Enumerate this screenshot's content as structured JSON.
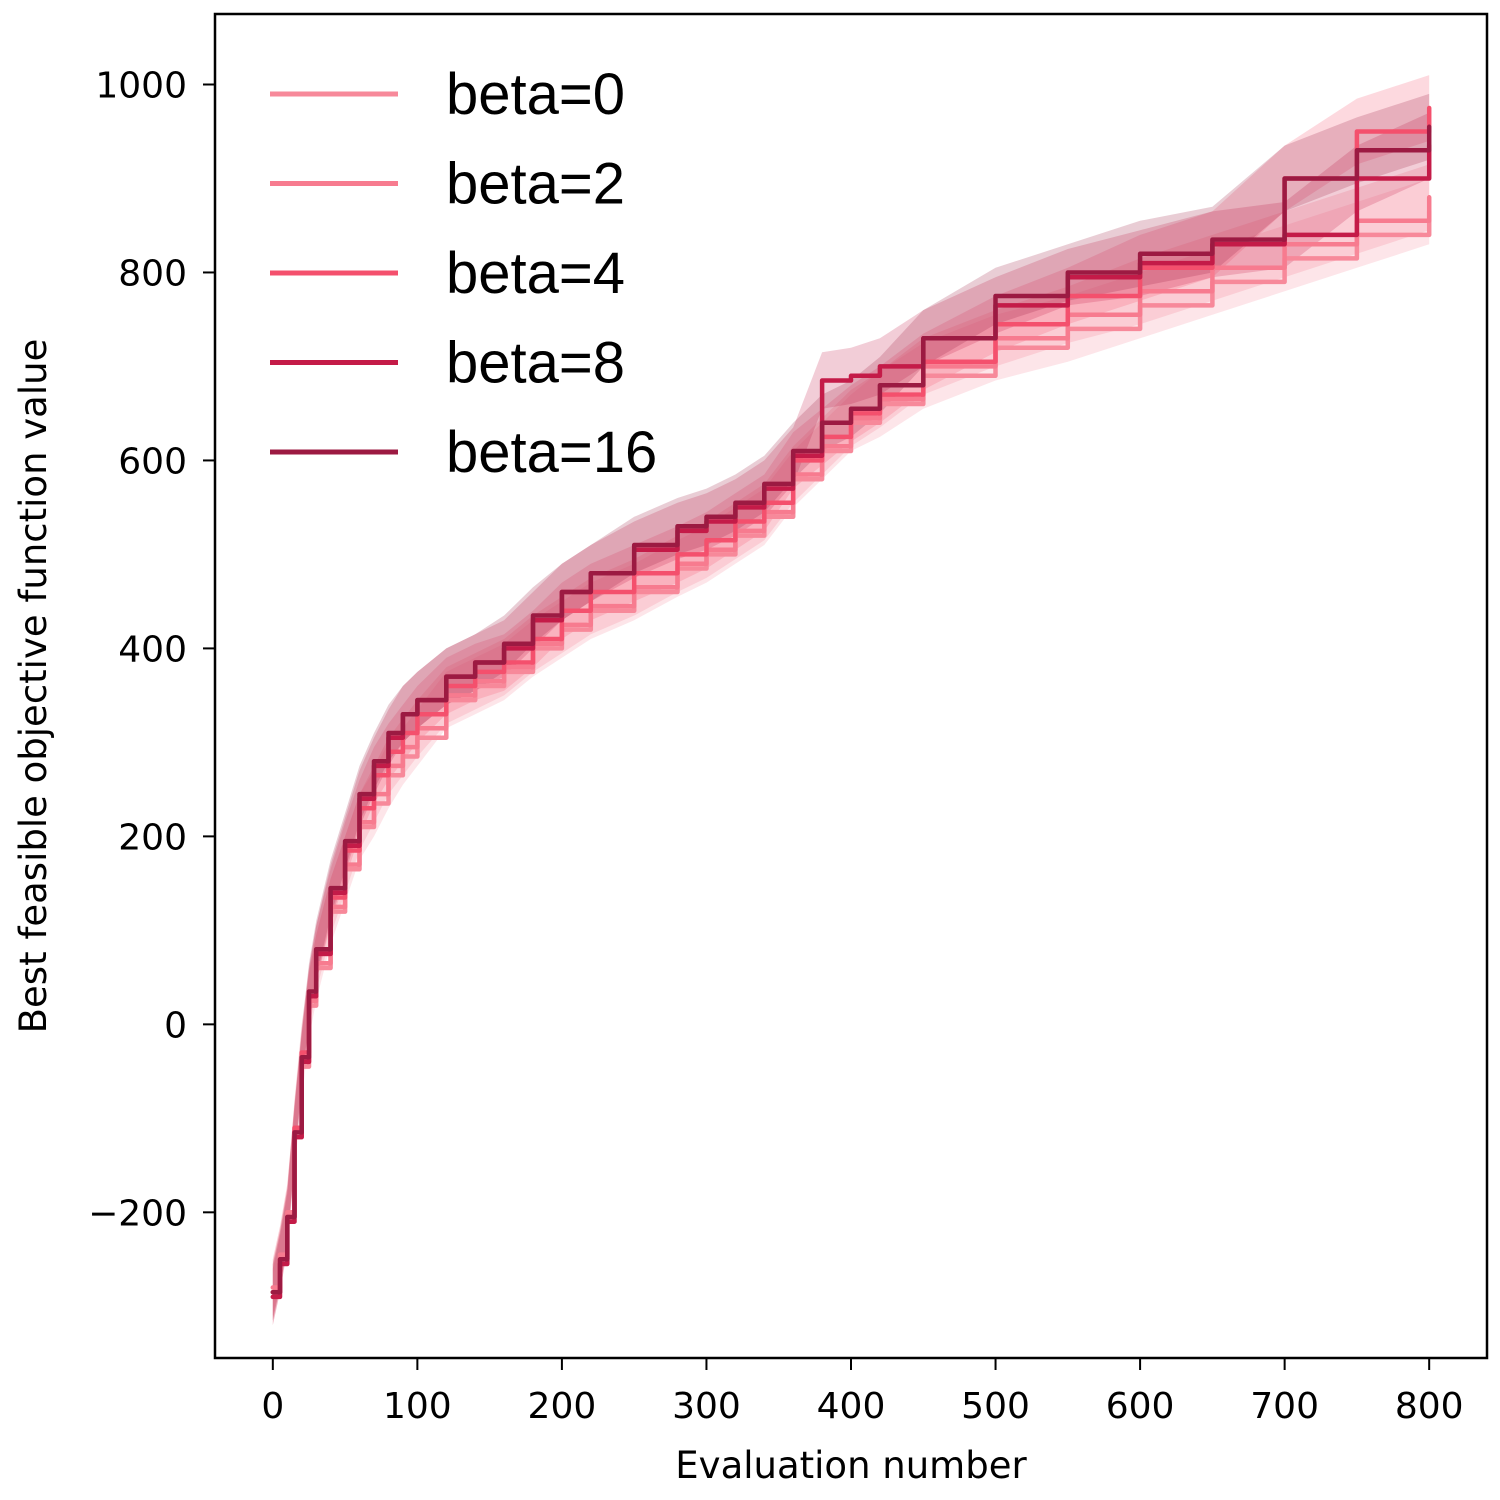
{
  "chart_data": {
    "type": "line",
    "title": "",
    "xlabel": "Evaluation number",
    "ylabel": "Best feasible objective function value",
    "xlim": [
      -40,
      840
    ],
    "ylim": [
      -355,
      1075
    ],
    "xticks": [
      0,
      100,
      200,
      300,
      400,
      500,
      600,
      700,
      800
    ],
    "yticks": [
      -200,
      0,
      200,
      400,
      600,
      800,
      1000
    ],
    "xtick_labels": [
      "0",
      "100",
      "200",
      "300",
      "400",
      "500",
      "600",
      "700",
      "800"
    ],
    "ytick_labels": [
      "−200",
      "0",
      "200",
      "400",
      "600",
      "800",
      "1000"
    ],
    "grid": false,
    "legend_position": "top-left",
    "shaded_bands": true,
    "series": [
      {
        "name": "beta=0",
        "color": "#f7899a",
        "x": [
          0,
          5,
          10,
          15,
          20,
          25,
          30,
          40,
          50,
          60,
          70,
          80,
          90,
          100,
          120,
          140,
          160,
          180,
          200,
          220,
          250,
          280,
          300,
          320,
          340,
          360,
          380,
          400,
          420,
          450,
          500,
          550,
          600,
          650,
          700,
          750,
          800
        ],
        "y": [
          -285,
          -250,
          -205,
          -120,
          -45,
          20,
          60,
          120,
          165,
          210,
          235,
          265,
          285,
          305,
          345,
          360,
          375,
          400,
          420,
          440,
          460,
          485,
          500,
          520,
          540,
          580,
          610,
          640,
          660,
          690,
          720,
          740,
          765,
          790,
          815,
          840,
          865
        ],
        "band": [
          35,
          35,
          35,
          35,
          35,
          35,
          35,
          35,
          35,
          35,
          35,
          35,
          30,
          30,
          30,
          30,
          30,
          30,
          30,
          30,
          30,
          30,
          30,
          30,
          30,
          30,
          30,
          30,
          35,
          35,
          35,
          35,
          35,
          35,
          35,
          35,
          35
        ]
      },
      {
        "name": "beta=2",
        "color": "#f77b8f",
        "x": [
          0,
          5,
          10,
          15,
          20,
          25,
          30,
          40,
          50,
          60,
          70,
          80,
          90,
          100,
          120,
          140,
          160,
          180,
          200,
          220,
          250,
          280,
          300,
          320,
          340,
          360,
          380,
          400,
          420,
          450,
          500,
          550,
          600,
          650,
          700,
          750,
          800
        ],
        "y": [
          -280,
          -245,
          -200,
          -115,
          -40,
          25,
          65,
          125,
          170,
          215,
          245,
          275,
          295,
          315,
          350,
          365,
          380,
          405,
          425,
          445,
          465,
          490,
          505,
          525,
          545,
          585,
          615,
          645,
          665,
          700,
          730,
          755,
          780,
          805,
          830,
          855,
          880
        ],
        "band": [
          30,
          30,
          30,
          30,
          30,
          30,
          30,
          30,
          30,
          30,
          30,
          30,
          30,
          30,
          30,
          30,
          30,
          30,
          30,
          30,
          30,
          30,
          30,
          30,
          30,
          30,
          30,
          30,
          30,
          30,
          30,
          30,
          35,
          35,
          35,
          35,
          35
        ]
      },
      {
        "name": "beta=4",
        "color": "#f4506d",
        "x": [
          0,
          5,
          10,
          15,
          20,
          25,
          30,
          40,
          50,
          60,
          70,
          80,
          90,
          100,
          120,
          140,
          160,
          180,
          200,
          220,
          250,
          280,
          300,
          320,
          340,
          360,
          380,
          400,
          420,
          450,
          500,
          550,
          600,
          650,
          700,
          750,
          800
        ],
        "y": [
          -285,
          -250,
          -205,
          -110,
          -30,
          30,
          75,
          135,
          185,
          230,
          265,
          290,
          310,
          330,
          360,
          375,
          385,
          410,
          440,
          460,
          480,
          500,
          515,
          535,
          555,
          600,
          625,
          650,
          670,
          705,
          745,
          775,
          805,
          830,
          900,
          950,
          975
        ],
        "band": [
          30,
          30,
          30,
          30,
          30,
          30,
          30,
          30,
          30,
          30,
          30,
          30,
          30,
          30,
          30,
          30,
          30,
          30,
          30,
          30,
          30,
          30,
          30,
          30,
          30,
          30,
          30,
          30,
          30,
          30,
          30,
          30,
          35,
          35,
          35,
          35,
          35
        ]
      },
      {
        "name": "beta=8",
        "color": "#c41b48",
        "x": [
          0,
          5,
          10,
          15,
          20,
          25,
          30,
          40,
          50,
          60,
          70,
          80,
          90,
          100,
          120,
          140,
          160,
          180,
          200,
          220,
          250,
          280,
          300,
          320,
          340,
          360,
          380,
          400,
          420,
          450,
          500,
          550,
          600,
          650,
          700,
          750,
          800
        ],
        "y": [
          -290,
          -255,
          -210,
          -120,
          -40,
          30,
          75,
          140,
          190,
          240,
          275,
          305,
          330,
          345,
          370,
          385,
          400,
          430,
          460,
          480,
          505,
          525,
          535,
          550,
          570,
          605,
          685,
          690,
          700,
          730,
          765,
          795,
          810,
          830,
          840,
          900,
          935
        ],
        "band": [
          30,
          30,
          30,
          30,
          30,
          30,
          30,
          30,
          30,
          30,
          30,
          30,
          30,
          30,
          30,
          30,
          30,
          30,
          30,
          30,
          30,
          30,
          30,
          30,
          30,
          30,
          30,
          30,
          30,
          30,
          30,
          30,
          35,
          35,
          35,
          35,
          35
        ]
      },
      {
        "name": "beta=16",
        "color": "#9c1a42",
        "x": [
          0,
          5,
          10,
          15,
          20,
          25,
          30,
          40,
          50,
          60,
          70,
          80,
          90,
          100,
          120,
          140,
          160,
          180,
          200,
          220,
          250,
          280,
          300,
          320,
          340,
          360,
          380,
          400,
          420,
          450,
          500,
          550,
          600,
          650,
          700,
          750,
          800
        ],
        "y": [
          -285,
          -250,
          -205,
          -115,
          -35,
          35,
          80,
          145,
          195,
          245,
          280,
          310,
          330,
          345,
          370,
          385,
          405,
          435,
          460,
          480,
          510,
          530,
          540,
          555,
          575,
          610,
          640,
          655,
          680,
          730,
          775,
          800,
          820,
          835,
          900,
          930,
          955
        ],
        "band": [
          30,
          30,
          30,
          30,
          30,
          30,
          30,
          30,
          30,
          30,
          30,
          30,
          30,
          30,
          30,
          30,
          30,
          30,
          30,
          30,
          30,
          30,
          30,
          30,
          30,
          30,
          30,
          30,
          30,
          30,
          30,
          30,
          35,
          35,
          35,
          35,
          35
        ]
      }
    ]
  }
}
